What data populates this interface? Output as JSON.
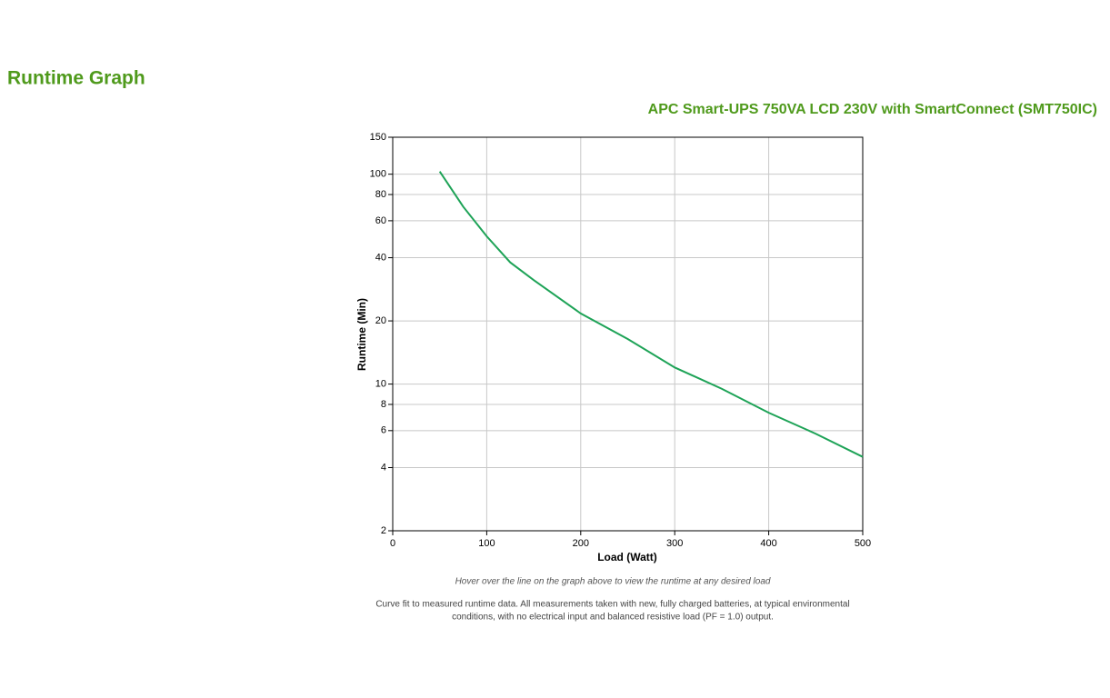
{
  "page": {
    "heading": "Runtime Graph"
  },
  "chart_data": {
    "type": "line",
    "title": "APC Smart-UPS 750VA LCD 230V with SmartConnect (SMT750IC)",
    "x_label": "Load (Watt)",
    "y_label": "Runtime (Min)",
    "x": [
      50,
      75,
      100,
      125,
      150,
      200,
      250,
      300,
      350,
      400,
      450,
      500
    ],
    "values": [
      103,
      70,
      50.6,
      38,
      31.3,
      21.7,
      16.4,
      12,
      9.5,
      7.3,
      5.8,
      4.5
    ],
    "color": "#1ea357",
    "xlim": [
      0,
      500
    ],
    "xticks": [
      0,
      100,
      200,
      300,
      400,
      500
    ],
    "ylim": [
      2,
      150
    ],
    "yticks": [
      2,
      4,
      6,
      8,
      10,
      20,
      40,
      60,
      80,
      100,
      150
    ],
    "log_y": true,
    "grid": true,
    "hint": "Hover over the line on the graph above to view the runtime at any desired load",
    "footnote": [
      "Curve fit to measured runtime data. All measurements taken with new, fully charged batteries, at typical environmental",
      "conditions, with no electrical input and balanced resistive load (PF = 1.0) output."
    ]
  }
}
